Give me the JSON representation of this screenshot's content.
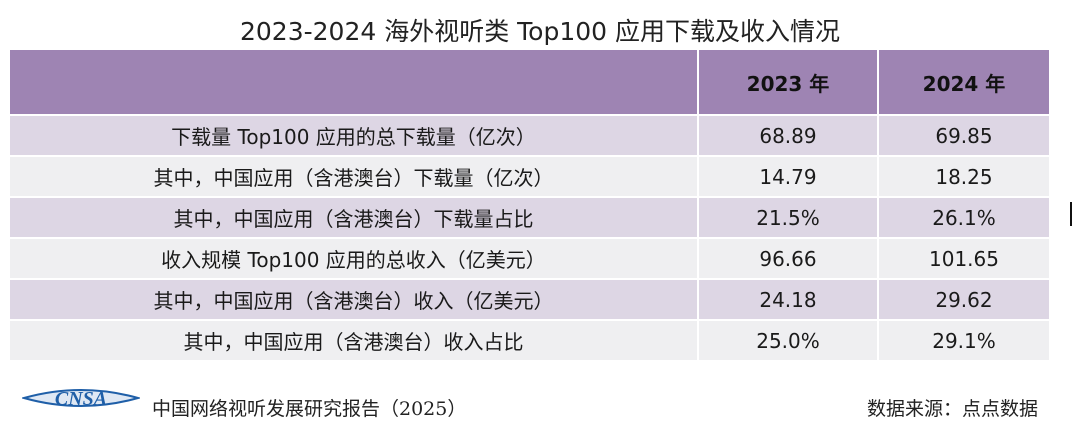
{
  "chart_data": {
    "type": "table",
    "title": "2023-2024 海外视听类 Top100 应用下载及收入情况",
    "columns": [
      "",
      "2023 年",
      "2024 年"
    ],
    "rows": [
      [
        "下载量 Top100 应用的总下载量（亿次）",
        "68.89",
        "69.85"
      ],
      [
        "其中，中国应用（含港澳台）下载量（亿次）",
        "14.79",
        "18.25"
      ],
      [
        "其中，中国应用（含港澳台）下载量占比",
        "21.5%",
        "26.1%"
      ],
      [
        "收入规模 Top100 应用的总收入（亿美元）",
        "96.66",
        "101.65"
      ],
      [
        "其中，中国应用（含港澳台）收入（亿美元）",
        "24.18",
        "29.62"
      ],
      [
        "其中，中国应用（含港澳台）收入占比",
        "25.0%",
        "29.1%"
      ]
    ]
  },
  "footer": {
    "logo_text": "CNSA",
    "report": "中国网络视听发展研究报告（2025）",
    "source": "数据来源：点点数据"
  },
  "colors": {
    "header_bg": "#9e84b3",
    "row_odd": "#ddd6e4",
    "row_even": "#efeff1",
    "logo_blue": "#1f5fa8"
  }
}
